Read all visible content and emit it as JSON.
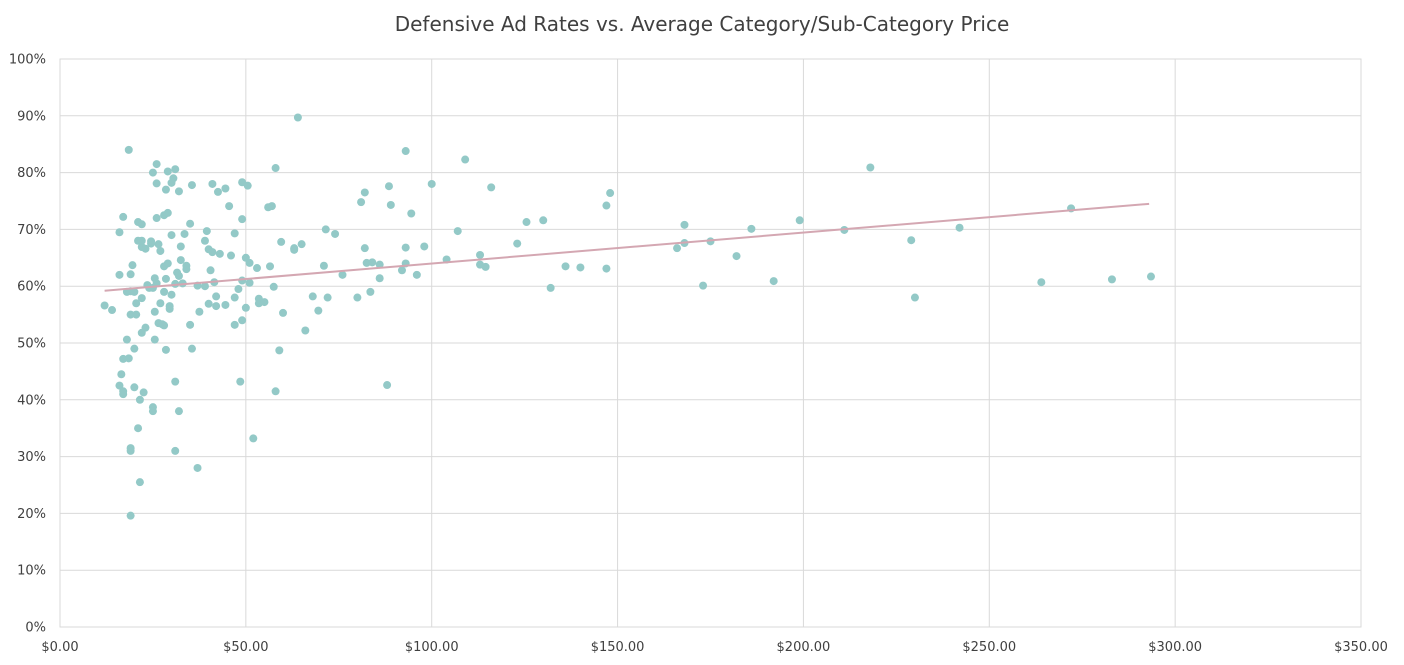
{
  "chart_data": {
    "type": "scatter",
    "title": "Defensive Ad Rates vs. Average Category/Sub-Category Price",
    "xlabel": "",
    "ylabel": "",
    "xlim": [
      0,
      350
    ],
    "ylim": [
      0,
      1
    ],
    "x_ticks": [
      0,
      50,
      100,
      150,
      200,
      250,
      300,
      350
    ],
    "x_tick_labels": [
      "$0.00",
      "$50.00",
      "$100.00",
      "$150.00",
      "$200.00",
      "$250.00",
      "$300.00",
      "$350.00"
    ],
    "y_ticks": [
      0,
      0.1,
      0.2,
      0.3,
      0.4,
      0.5,
      0.6,
      0.7,
      0.8,
      0.9,
      1.0
    ],
    "y_tick_labels": [
      "0%",
      "10%",
      "20%",
      "30%",
      "40%",
      "50%",
      "60%",
      "70%",
      "80%",
      "90%",
      "100%"
    ],
    "grid": true,
    "legend": "none",
    "colors": {
      "points": "#93c9c7",
      "trendline": "#d4a7b2",
      "grid": "#d9d9d9",
      "text": "#404040"
    },
    "trendline": {
      "x": [
        12,
        293
      ],
      "y": [
        0.592,
        0.745
      ]
    },
    "points": [
      [
        12,
        0.566
      ],
      [
        14,
        0.558
      ],
      [
        16,
        0.695
      ],
      [
        16,
        0.62
      ],
      [
        16,
        0.425
      ],
      [
        16.5,
        0.445
      ],
      [
        17,
        0.472
      ],
      [
        17,
        0.41
      ],
      [
        17,
        0.415
      ],
      [
        17,
        0.722
      ],
      [
        18,
        0.506
      ],
      [
        18,
        0.59
      ],
      [
        18.5,
        0.84
      ],
      [
        18.5,
        0.473
      ],
      [
        19,
        0.315
      ],
      [
        19,
        0.31
      ],
      [
        19,
        0.196
      ],
      [
        19,
        0.55
      ],
      [
        19,
        0.591
      ],
      [
        19,
        0.621
      ],
      [
        19.5,
        0.637
      ],
      [
        20,
        0.49
      ],
      [
        20,
        0.59
      ],
      [
        20,
        0.422
      ],
      [
        20.5,
        0.55
      ],
      [
        20.5,
        0.57
      ],
      [
        21,
        0.68
      ],
      [
        21,
        0.713
      ],
      [
        21,
        0.35
      ],
      [
        21.5,
        0.4
      ],
      [
        21.5,
        0.255
      ],
      [
        22,
        0.518
      ],
      [
        22,
        0.579
      ],
      [
        22,
        0.669
      ],
      [
        22,
        0.709
      ],
      [
        22,
        0.68
      ],
      [
        22.5,
        0.413
      ],
      [
        23,
        0.527
      ],
      [
        23,
        0.666
      ],
      [
        23.5,
        0.602
      ],
      [
        24,
        0.597
      ],
      [
        24.5,
        0.675
      ],
      [
        24.5,
        0.679
      ],
      [
        25,
        0.8
      ],
      [
        25,
        0.387
      ],
      [
        25,
        0.38
      ],
      [
        25,
        0.597
      ],
      [
        25.5,
        0.506
      ],
      [
        25.5,
        0.555
      ],
      [
        25.5,
        0.614
      ],
      [
        26,
        0.815
      ],
      [
        26,
        0.781
      ],
      [
        26,
        0.72
      ],
      [
        26,
        0.605
      ],
      [
        26.5,
        0.674
      ],
      [
        26.5,
        0.535
      ],
      [
        27,
        0.662
      ],
      [
        27,
        0.57
      ],
      [
        27.5,
        0.533
      ],
      [
        28,
        0.531
      ],
      [
        28,
        0.635
      ],
      [
        28,
        0.725
      ],
      [
        28,
        0.59
      ],
      [
        28.5,
        0.77
      ],
      [
        28.5,
        0.488
      ],
      [
        28.5,
        0.613
      ],
      [
        29,
        0.802
      ],
      [
        29,
        0.729
      ],
      [
        29,
        0.64
      ],
      [
        29.5,
        0.56
      ],
      [
        29.5,
        0.565
      ],
      [
        30,
        0.69
      ],
      [
        30,
        0.782
      ],
      [
        30,
        0.585
      ],
      [
        30.5,
        0.79
      ],
      [
        31,
        0.31
      ],
      [
        31,
        0.604
      ],
      [
        31,
        0.806
      ],
      [
        31,
        0.432
      ],
      [
        31.5,
        0.624
      ],
      [
        32,
        0.618
      ],
      [
        32,
        0.38
      ],
      [
        32,
        0.767
      ],
      [
        32.5,
        0.67
      ],
      [
        32.5,
        0.646
      ],
      [
        33,
        0.605
      ],
      [
        33.5,
        0.692
      ],
      [
        34,
        0.636
      ],
      [
        34,
        0.63
      ],
      [
        35,
        0.71
      ],
      [
        35,
        0.532
      ],
      [
        35.5,
        0.49
      ],
      [
        35.5,
        0.778
      ],
      [
        37,
        0.28
      ],
      [
        37,
        0.601
      ],
      [
        37.5,
        0.555
      ],
      [
        39,
        0.68
      ],
      [
        39,
        0.6
      ],
      [
        39.5,
        0.697
      ],
      [
        40,
        0.569
      ],
      [
        40,
        0.665
      ],
      [
        40.5,
        0.628
      ],
      [
        41,
        0.78
      ],
      [
        41,
        0.66
      ],
      [
        41.5,
        0.607
      ],
      [
        42,
        0.565
      ],
      [
        42,
        0.582
      ],
      [
        42.5,
        0.766
      ],
      [
        43,
        0.657
      ],
      [
        44.5,
        0.772
      ],
      [
        44.5,
        0.567
      ],
      [
        45.5,
        0.741
      ],
      [
        46,
        0.654
      ],
      [
        47,
        0.693
      ],
      [
        47,
        0.58
      ],
      [
        47,
        0.532
      ],
      [
        48,
        0.595
      ],
      [
        48.5,
        0.432
      ],
      [
        49,
        0.54
      ],
      [
        49,
        0.61
      ],
      [
        49,
        0.718
      ],
      [
        49,
        0.783
      ],
      [
        50,
        0.65
      ],
      [
        50,
        0.562
      ],
      [
        50.5,
        0.777
      ],
      [
        51,
        0.606
      ],
      [
        51,
        0.641
      ],
      [
        52,
        0.332
      ],
      [
        53,
        0.632
      ],
      [
        53.5,
        0.578
      ],
      [
        53.5,
        0.57
      ],
      [
        55,
        0.572
      ],
      [
        56,
        0.739
      ],
      [
        56.5,
        0.635
      ],
      [
        57,
        0.741
      ],
      [
        57.5,
        0.599
      ],
      [
        58,
        0.808
      ],
      [
        58,
        0.415
      ],
      [
        59,
        0.487
      ],
      [
        59.5,
        0.678
      ],
      [
        60,
        0.553
      ],
      [
        63,
        0.667
      ],
      [
        63,
        0.664
      ],
      [
        64,
        0.897
      ],
      [
        65,
        0.674
      ],
      [
        66,
        0.522
      ],
      [
        68,
        0.582
      ],
      [
        69.5,
        0.557
      ],
      [
        71,
        0.636
      ],
      [
        71.5,
        0.7
      ],
      [
        72,
        0.58
      ],
      [
        74,
        0.692
      ],
      [
        76,
        0.62
      ],
      [
        80,
        0.58
      ],
      [
        81,
        0.748
      ],
      [
        82,
        0.667
      ],
      [
        82,
        0.765
      ],
      [
        82.5,
        0.641
      ],
      [
        83.5,
        0.59
      ],
      [
        84,
        0.642
      ],
      [
        86,
        0.614
      ],
      [
        86,
        0.638
      ],
      [
        88,
        0.426
      ],
      [
        88.5,
        0.776
      ],
      [
        89,
        0.743
      ],
      [
        92,
        0.628
      ],
      [
        93,
        0.838
      ],
      [
        93,
        0.668
      ],
      [
        93,
        0.64
      ],
      [
        94.5,
        0.728
      ],
      [
        96,
        0.62
      ],
      [
        98,
        0.67
      ],
      [
        100,
        0.78
      ],
      [
        104,
        0.647
      ],
      [
        107,
        0.697
      ],
      [
        109,
        0.823
      ],
      [
        113,
        0.638
      ],
      [
        113,
        0.655
      ],
      [
        114.5,
        0.634
      ],
      [
        116,
        0.774
      ],
      [
        123,
        0.675
      ],
      [
        125.5,
        0.713
      ],
      [
        130,
        0.716
      ],
      [
        132,
        0.597
      ],
      [
        136,
        0.635
      ],
      [
        140,
        0.633
      ],
      [
        147,
        0.631
      ],
      [
        147,
        0.742
      ],
      [
        148,
        0.764
      ],
      [
        166,
        0.667
      ],
      [
        168,
        0.676
      ],
      [
        168,
        0.708
      ],
      [
        173,
        0.601
      ],
      [
        175,
        0.679
      ],
      [
        182,
        0.653
      ],
      [
        186,
        0.701
      ],
      [
        192,
        0.609
      ],
      [
        199,
        0.716
      ],
      [
        211,
        0.699
      ],
      [
        218,
        0.809
      ],
      [
        229,
        0.681
      ],
      [
        230,
        0.58
      ],
      [
        242,
        0.703
      ],
      [
        264,
        0.607
      ],
      [
        272,
        0.737
      ],
      [
        283,
        0.612
      ],
      [
        293.5,
        0.617
      ]
    ]
  }
}
